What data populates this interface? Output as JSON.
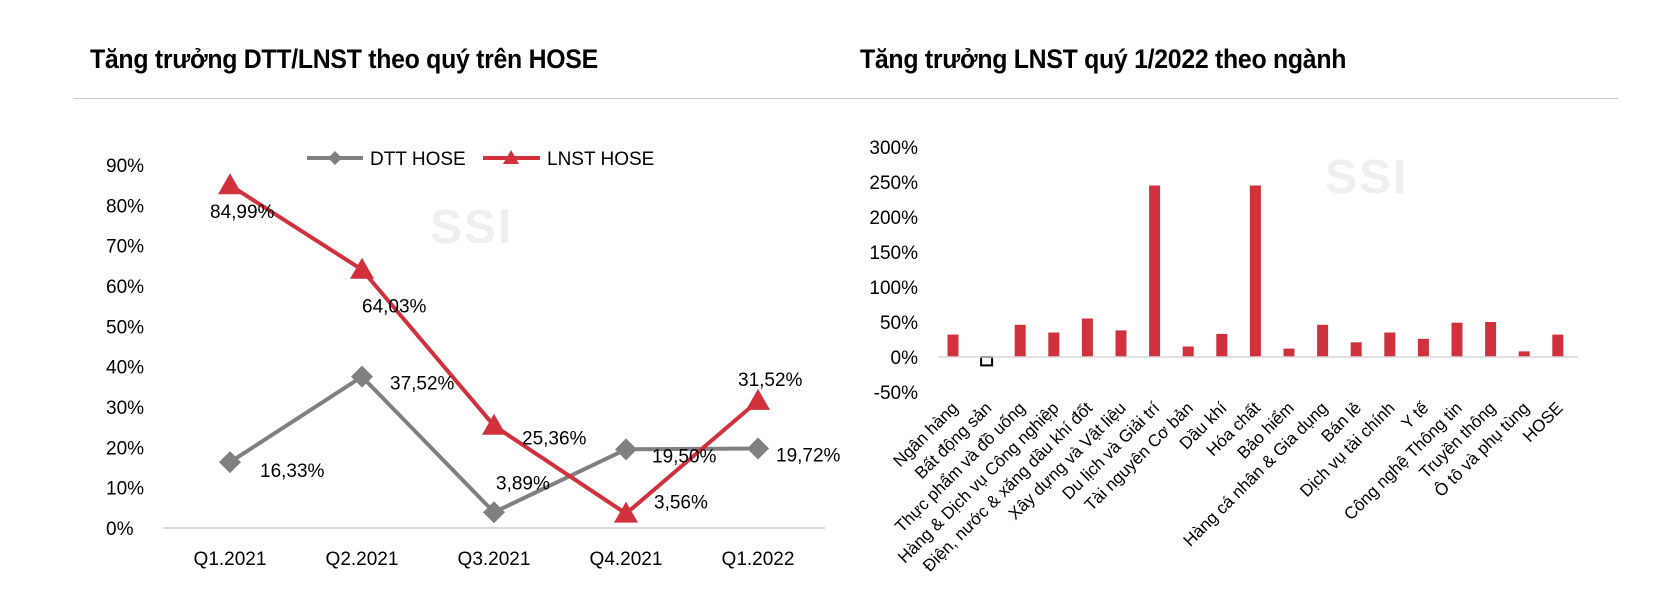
{
  "left_title": "Tăng trưởng DTT/LNST theo quý trên HOSE",
  "right_title": "Tăng trưởng LNST quý 1/2022 theo ngành",
  "watermark": "SSI",
  "colors": {
    "dtt": "#808080",
    "lnst": "#d1313d",
    "bar": "#d1313d"
  },
  "chart_data": [
    {
      "type": "line",
      "title": "Tăng trưởng DTT/LNST theo quý trên HOSE",
      "categories": [
        "Q1.2021",
        "Q2.2021",
        "Q3.2021",
        "Q4.2021",
        "Q1.2022"
      ],
      "ylim": [
        0,
        90
      ],
      "yticks": [
        "0%",
        "10%",
        "20%",
        "30%",
        "40%",
        "50%",
        "60%",
        "70%",
        "80%",
        "90%"
      ],
      "legend_position": "top",
      "series": [
        {
          "name": "DTT HOSE",
          "values": [
            16.33,
            37.52,
            3.89,
            19.5,
            19.72
          ],
          "labels": [
            "16,33%",
            "37,52%",
            "3,89%",
            "19,50%",
            "19,72%"
          ]
        },
        {
          "name": "LNST HOSE",
          "values": [
            84.99,
            64.03,
            25.36,
            3.56,
            31.52
          ],
          "labels": [
            "84,99%",
            "64,03%",
            "25,36%",
            "3,56%",
            "31,52%"
          ]
        }
      ]
    },
    {
      "type": "bar",
      "title": "Tăng trưởng LNST quý 1/2022 theo ngành",
      "categories": [
        "Ngân hàng",
        "Bất động sản",
        "Thực phẩm và đồ uống",
        "Hàng & Dịch vụ Công nghiệp",
        "Điện, nước & xăng dầu khí đốt",
        "Xây dựng và Vật liệu",
        "Du lịch và Giải trí",
        "Tài nguyên Cơ bản",
        "Dầu khí",
        "Hóa chất",
        "Bảo hiểm",
        "Hàng cá nhân & Gia dụng",
        "Bán lẻ",
        "Dịch vụ tài chính",
        "Y tế",
        "Công nghệ Thông tin",
        "Truyền thông",
        "Ô tô và phụ tùng",
        "HOSE"
      ],
      "values": [
        32,
        -12,
        46,
        35,
        55,
        38,
        245,
        15,
        33,
        245,
        12,
        46,
        21,
        35,
        26,
        49,
        50,
        8,
        32
      ],
      "ylim": [
        -50,
        300
      ],
      "yticks": [
        "-50%",
        "0%",
        "50%",
        "100%",
        "150%",
        "200%",
        "250%",
        "300%"
      ]
    }
  ]
}
